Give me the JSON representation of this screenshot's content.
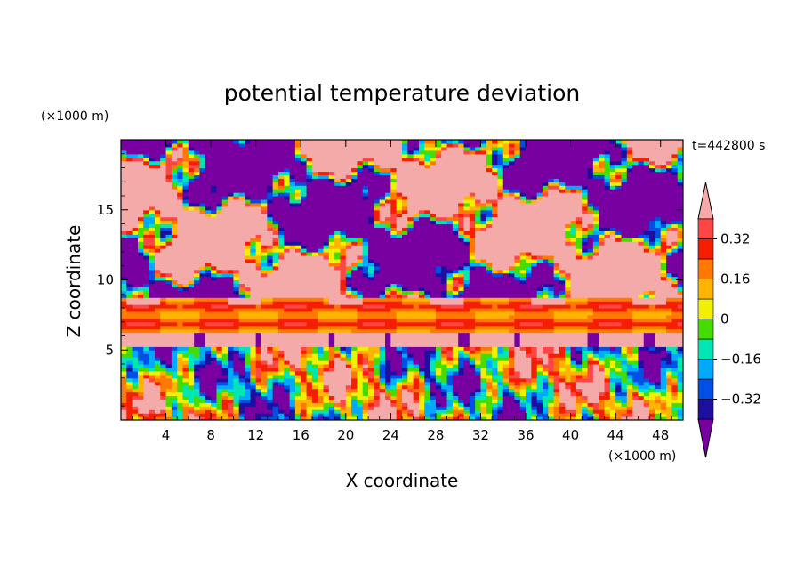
{
  "chart_data": {
    "type": "heatmap",
    "title": "potential temperature deviation",
    "time_label": "t=442800 s",
    "xlabel": "X coordinate",
    "ylabel": "Z coordinate",
    "x_unit": "(×1000 m)",
    "z_unit": "(×1000 m)",
    "xlim": [
      0,
      50
    ],
    "zlim": [
      0,
      20
    ],
    "x_ticks": [
      4,
      8,
      12,
      16,
      20,
      24,
      28,
      32,
      36,
      40,
      44,
      48
    ],
    "z_ticks": [
      5,
      10,
      15
    ],
    "colorbar": {
      "levels": [
        -0.4,
        -0.32,
        -0.24,
        -0.16,
        -0.08,
        0,
        0.08,
        0.16,
        0.24,
        0.32,
        0.4
      ],
      "tick_labels": [
        "0.32",
        "0.16",
        "0",
        "−0.16",
        "−0.32"
      ],
      "tick_values": [
        0.32,
        0.16,
        0,
        -0.16,
        -0.32
      ],
      "colors": [
        "#1e0fa0",
        "#0050e6",
        "#00aaff",
        "#00e6b4",
        "#46dc00",
        "#f0f000",
        "#ffb400",
        "#ff7800",
        "#f51e00",
        "#ff4646"
      ],
      "under_color": "#7800a0",
      "over_color": "#f5aaaa",
      "extend": "both"
    },
    "bands": [
      {
        "z_range": [
          0,
          6
        ],
        "pattern": "mixed turbulent field, values spanning −0.4 to 0.4"
      },
      {
        "z_range": [
          5.3,
          6.3
        ],
        "pattern": "mostly above 0.4 (pink), purple blobs at top"
      },
      {
        "z_range": [
          6.3,
          8.7
        ],
        "pattern": "mostly 0.16 to 0.32 (orange/red layers)"
      },
      {
        "z_range": [
          8.7,
          20
        ],
        "pattern": "large patches of above 0.4 (pink) and below −0.4 (purple) with thin colored edges"
      }
    ]
  }
}
